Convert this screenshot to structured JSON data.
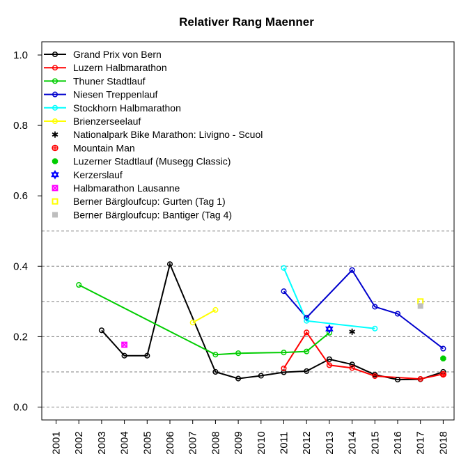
{
  "chart_data": {
    "type": "line",
    "title": "Relativer Rang Maenner",
    "xlabel": "",
    "ylabel": "",
    "x": [
      2001,
      2002,
      2003,
      2004,
      2005,
      2006,
      2007,
      2008,
      2009,
      2010,
      2011,
      2012,
      2013,
      2014,
      2015,
      2016,
      2017,
      2018
    ],
    "xlim": [
      2001,
      2018
    ],
    "ylim": [
      0.0,
      1.0
    ],
    "yticks": [
      0.0,
      0.2,
      0.4,
      0.6,
      0.8,
      1.0
    ],
    "ytick_labels": [
      "0.0",
      "0.2",
      "0.4",
      "0.6",
      "0.8",
      "1.0"
    ],
    "xtick_labels": [
      "2001",
      "2002",
      "2003",
      "2004",
      "2005",
      "2006",
      "2007",
      "2008",
      "2009",
      "2010",
      "2011",
      "2012",
      "2013",
      "2014",
      "2015",
      "2016",
      "2017",
      "2018"
    ],
    "grid": "horizontal dashed lines at 0.0, 0.1, 0.2, 0.3, 0.4, 0.5",
    "gridlines": [
      0.0,
      0.1,
      0.2,
      0.3,
      0.4,
      0.5
    ],
    "legend_position": "top-left",
    "series": [
      {
        "name": "Grand Prix von Bern",
        "color": "#000000",
        "lines": true,
        "marker": "circle",
        "points": [
          [
            2003,
            0.218
          ],
          [
            2004,
            0.146
          ],
          [
            2005,
            0.146
          ],
          [
            2006,
            0.406
          ],
          [
            2008,
            0.1
          ],
          [
            2009,
            0.081
          ],
          [
            2010,
            0.089
          ],
          [
            2011,
            0.099
          ],
          [
            2012,
            0.102
          ],
          [
            2013,
            0.136
          ],
          [
            2014,
            0.121
          ],
          [
            2015,
            0.092
          ],
          [
            2016,
            0.078
          ],
          [
            2017,
            0.079
          ],
          [
            2018,
            0.1
          ]
        ]
      },
      {
        "name": "Luzern Halbmarathon",
        "color": "#ff0000",
        "lines": true,
        "marker": "circle",
        "points": [
          [
            2011,
            0.11
          ],
          [
            2012,
            0.212
          ],
          [
            2013,
            0.119
          ],
          [
            2014,
            0.111
          ],
          [
            2015,
            0.088
          ],
          [
            2017,
            0.08
          ],
          [
            2018,
            0.094
          ]
        ]
      },
      {
        "name": "Thuner Stadtlauf",
        "color": "#00cd00",
        "lines": true,
        "marker": "circle",
        "points": [
          [
            2002,
            0.347
          ],
          [
            2008,
            0.149
          ],
          [
            2009,
            0.153
          ],
          [
            2011,
            0.155
          ],
          [
            2012,
            0.158
          ],
          [
            2013,
            0.211
          ]
        ]
      },
      {
        "name": "Niesen Treppenlauf",
        "color": "#0000cd",
        "lines": true,
        "marker": "circle",
        "points": [
          [
            2011,
            0.329
          ],
          [
            2012,
            0.254
          ],
          [
            2014,
            0.389
          ],
          [
            2015,
            0.285
          ],
          [
            2016,
            0.265
          ],
          [
            2018,
            0.166
          ]
        ]
      },
      {
        "name": "Stockhorn Halbmarathon",
        "color": "#00ffff",
        "lines": true,
        "marker": "circle",
        "points": [
          [
            2011,
            0.395
          ],
          [
            2012,
            0.245
          ],
          [
            2015,
            0.223
          ]
        ]
      },
      {
        "name": "Brienzerseelauf",
        "color": "#ffff00",
        "lines": true,
        "marker": "circle",
        "points": [
          [
            2007,
            0.24
          ],
          [
            2008,
            0.276
          ]
        ]
      },
      {
        "name": "Nationalpark Bike Marathon: Livigno - Scuol",
        "color": "#000000",
        "lines": false,
        "marker": "asterisk",
        "points": [
          [
            2014,
            0.214
          ]
        ]
      },
      {
        "name": "Mountain Man",
        "color": "#ff0000",
        "lines": false,
        "marker": "circle-plus",
        "points": [
          [
            2018,
            0.093
          ]
        ]
      },
      {
        "name": "Luzerner Stadtlauf (Musegg Classic)",
        "color": "#00cd00",
        "lines": false,
        "marker": "filled-octagon",
        "points": [
          [
            2018,
            0.138
          ]
        ]
      },
      {
        "name": "Kerzerslauf",
        "color": "#0000ff",
        "lines": false,
        "marker": "star-of-david",
        "points": [
          [
            2013,
            0.222
          ]
        ]
      },
      {
        "name": "Halbmarathon Lausanne",
        "color": "#ff00ff",
        "lines": false,
        "marker": "square-x",
        "points": [
          [
            2004,
            0.177
          ]
        ]
      },
      {
        "name": "Berner Bärgloufcup: Gurten (Tag 1)",
        "color": "#ffff00",
        "lines": false,
        "marker": "square-open",
        "points": [
          [
            2017,
            0.3
          ]
        ]
      },
      {
        "name": "Berner Bärgloufcup: Bantiger (Tag 4)",
        "color": "#bebebe",
        "lines": false,
        "marker": "square-filled",
        "points": [
          [
            2017,
            0.287
          ]
        ]
      }
    ]
  }
}
